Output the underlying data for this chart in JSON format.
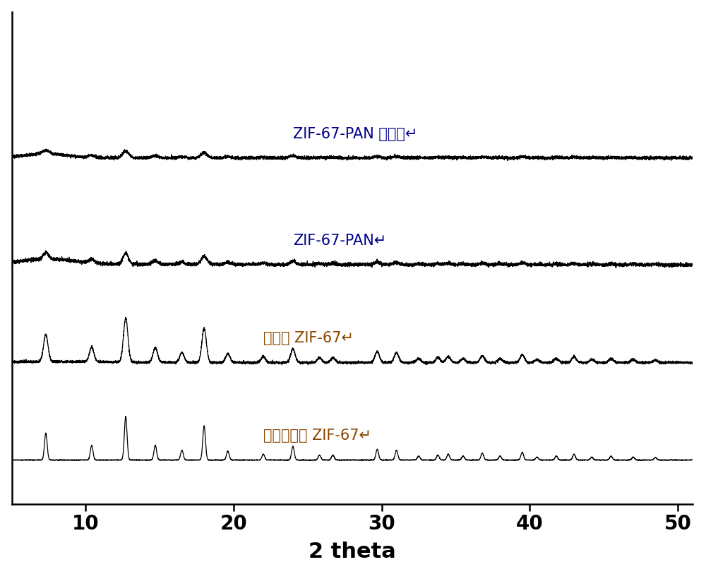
{
  "xlim": [
    5,
    51
  ],
  "ylim": [
    -0.1,
    10.0
  ],
  "xticks": [
    10,
    20,
    30,
    40,
    50
  ],
  "xlabel": "2 theta",
  "xlabel_fontsize": 22,
  "tick_fontsize": 20,
  "background_color": "#ffffff",
  "line_color": "#000000",
  "labels": [
    "ZIF-67-PAN 催化后↵",
    "ZIF-67-PAN↵",
    "合成的 ZIF-67↵",
    "理论模拟的 ZIF-67↵"
  ],
  "label_colors_latin": [
    "#00008b",
    "#00008b",
    "#8b4500",
    "#8b4500"
  ],
  "label_colors_cjk": [
    "#000000",
    "#000000",
    "#000000",
    "#000000"
  ],
  "offsets": [
    7.0,
    4.8,
    2.8,
    0.8
  ],
  "zif67_peaks": [
    7.3,
    10.4,
    12.7,
    14.7,
    16.5,
    18.0,
    19.6,
    22.0,
    24.0,
    25.8,
    26.7,
    29.7,
    31.0,
    32.5,
    33.8,
    34.5,
    35.5,
    36.8,
    38.0,
    39.5,
    40.5,
    41.8,
    43.0,
    44.2,
    45.5,
    47.0,
    48.5
  ],
  "zif67_heights": [
    0.55,
    0.3,
    0.9,
    0.3,
    0.2,
    0.7,
    0.18,
    0.12,
    0.28,
    0.1,
    0.1,
    0.22,
    0.2,
    0.08,
    0.1,
    0.12,
    0.08,
    0.14,
    0.08,
    0.16,
    0.06,
    0.08,
    0.12,
    0.06,
    0.08,
    0.06,
    0.05
  ]
}
